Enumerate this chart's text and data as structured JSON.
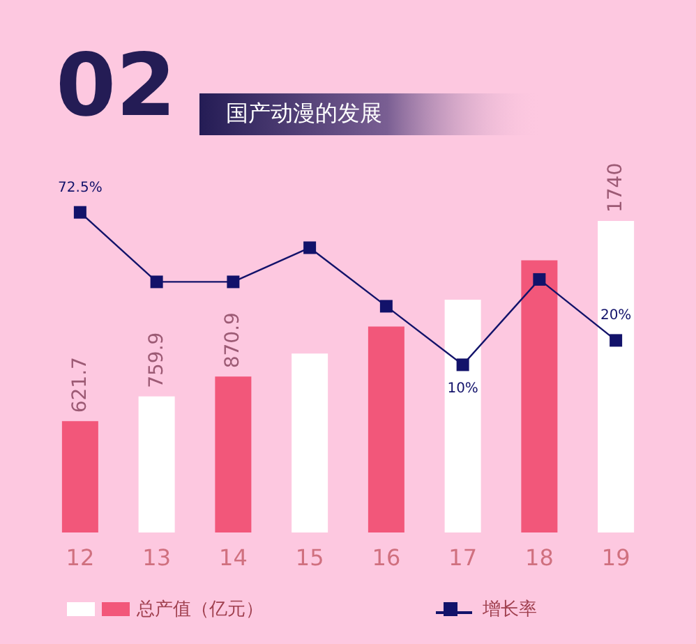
{
  "chart_data": {
    "type": "bar",
    "title": "国产动漫的发展",
    "annotations": [
      "02"
    ],
    "categories": [
      "12",
      "13",
      "14",
      "15",
      "16",
      "17",
      "18",
      "19"
    ],
    "series": [
      {
        "name": "总产值（亿元）",
        "colors": [
          "#f2577a",
          "#ffffff",
          "#f2577a",
          "#ffffff",
          "#f2577a",
          "#ffffff",
          "#f2577a",
          "#ffffff"
        ],
        "values": [
          621.7,
          759.9,
          870.9,
          1000,
          1150,
          1300,
          1520,
          1740
        ],
        "value_labels": [
          "621.7",
          "759.9",
          "870.9",
          null,
          null,
          null,
          null,
          "1740"
        ]
      },
      {
        "name": "增长率",
        "type": "line",
        "axis": "y2",
        "color": "#12126a",
        "values": [
          72.5,
          44,
          44,
          58,
          34,
          10,
          45,
          20
        ],
        "value_labels": [
          "72.5%",
          null,
          null,
          null,
          null,
          "10%",
          null,
          "20%"
        ]
      }
    ],
    "tick_labels": "x",
    "grid": false,
    "legend": "bottom",
    "marker": "square",
    "line_style": "solid"
  }
}
